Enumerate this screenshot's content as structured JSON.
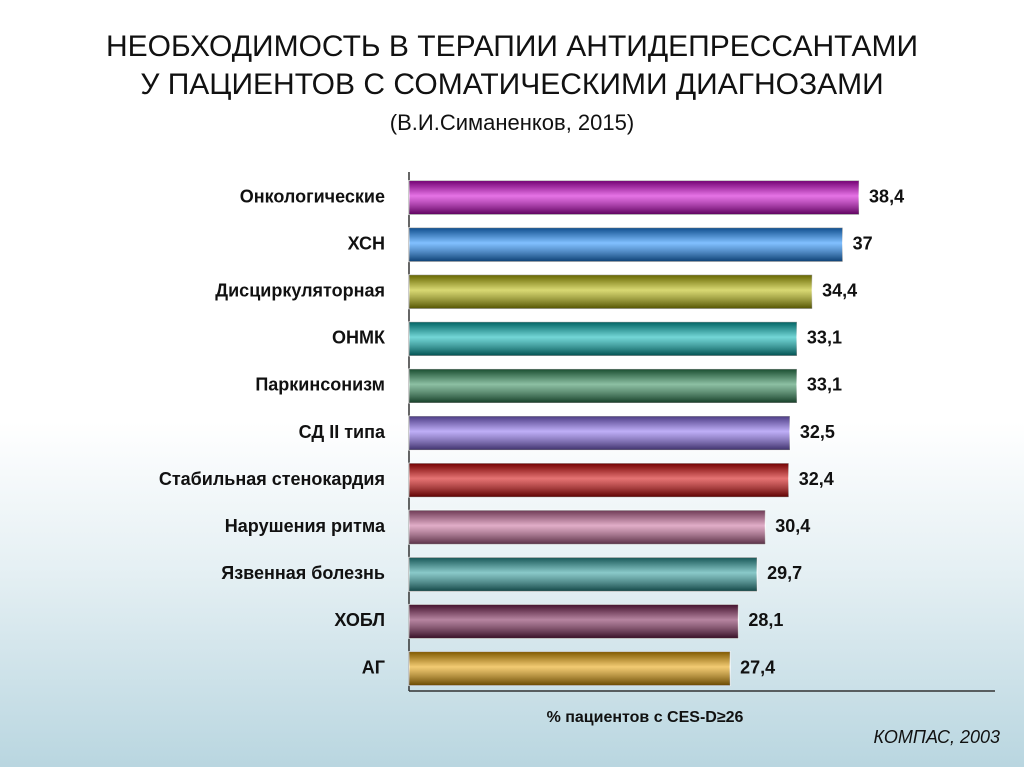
{
  "chart_data": {
    "type": "hbar",
    "title": [
      "НЕОБХОДИМОСТЬ В ТЕРАПИИ АНТИДЕПРЕССАНТАМИ",
      "У ПАЦИЕНТОВ С СОМАТИЧЕСКИМИ ДИАГНОЗАМИ"
    ],
    "subtitle": "(В.И.Симаненков, 2015)",
    "x_label": "% пациентов с CES-D≥26",
    "source": "КОМПАС, 2003",
    "categories": [
      "Онкологические",
      "ХСН",
      "Дисциркуляторная",
      "ОНМК",
      "Паркинсонизм",
      "СД II типа",
      "Стабильная стенокардия",
      "Нарушения ритма",
      "Язвенная болезнь",
      "ХОБЛ",
      "АГ"
    ],
    "values": [
      38.4,
      37,
      34.4,
      33.1,
      33.1,
      32.5,
      32.4,
      30.4,
      29.7,
      28.1,
      27.4
    ],
    "value_labels": [
      "38,4",
      "37",
      "34,4",
      "33,1",
      "33,1",
      "32,5",
      "32,4",
      "30,4",
      "29,7",
      "28,1",
      "27,4"
    ],
    "colors": [
      "#d000d0",
      "#1a8cff",
      "#b8b800",
      "#00b4b4",
      "#2e8b57",
      "#8a6cf0",
      "#d00000",
      "#c86a9a",
      "#2a9d9d",
      "#7a2052",
      "#e8a000"
    ],
    "xlim": [
      0,
      50
    ]
  }
}
